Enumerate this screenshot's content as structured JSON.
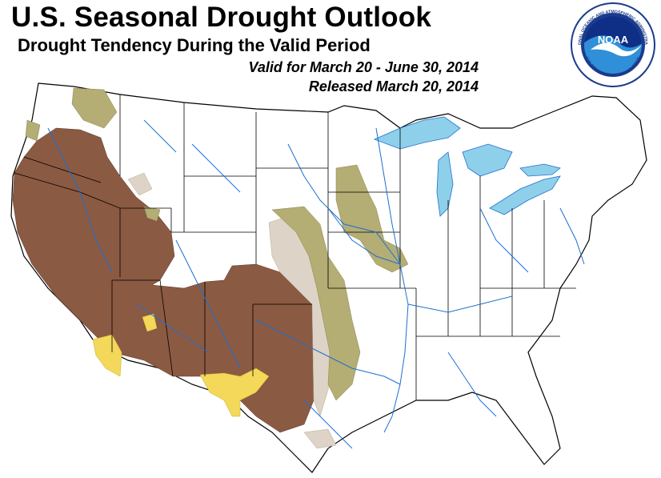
{
  "header": {
    "title": "U.S. Seasonal Drought Outlook",
    "subtitle": "Drought Tendency During the Valid Period",
    "valid_text": "Valid for March 20 - June 30, 2014",
    "released_text": "Released March 20, 2014"
  },
  "logo": {
    "text": "NOAA",
    "ring_text_top": "NATIONAL OCEANIC AND ATMOSPHERIC ADMINISTRATION",
    "ring_text_bottom": "U.S. DEPARTMENT OF COMMERCE",
    "colors": {
      "ring": "#ffffff",
      "outer": "#1b3b8c",
      "inner_top": "#0f2f86",
      "inner_bottom": "#2f8fd8",
      "bird": "#ffffff"
    }
  },
  "map": {
    "colors": {
      "persists": "#8b5a42",
      "improves": "#ddd3c6",
      "removal": "#b4ad74",
      "develops": "#f3d85a",
      "water": "#8ed0ea",
      "rivers": "#1f6fd1",
      "borders": "#000000"
    }
  }
}
